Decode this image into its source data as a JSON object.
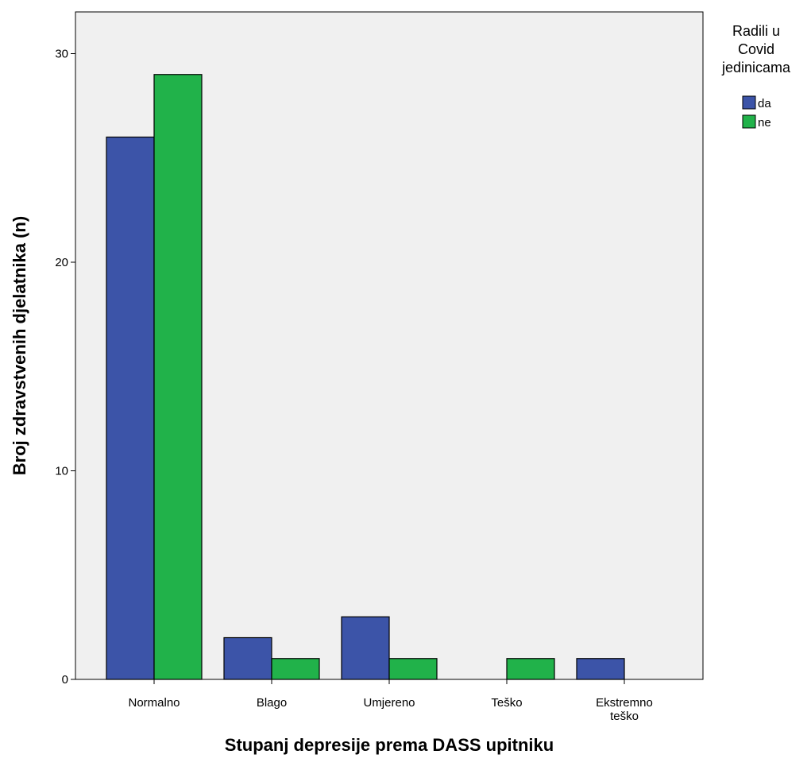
{
  "chart_data": {
    "type": "bar",
    "title": "",
    "xlabel": "Stupanj depresije prema DASS upitniku",
    "ylabel": "Broj zdravstvenih djelatnika (n)",
    "categories": [
      [
        "Normalno"
      ],
      [
        "Blago"
      ],
      [
        "Umjereno"
      ],
      [
        "Teško"
      ],
      [
        "Ekstremno",
        "teško"
      ]
    ],
    "series": [
      {
        "name": "da",
        "color": "#3c54a8",
        "values": [
          26,
          2,
          3,
          0,
          1
        ]
      },
      {
        "name": "ne",
        "color": "#21b24a",
        "values": [
          29,
          1,
          1,
          1,
          0
        ]
      }
    ],
    "ylim": [
      0,
      32
    ],
    "yticks": [
      0,
      10,
      20,
      30
    ],
    "grid": false,
    "plot_background": "#f0f0f0",
    "legend": {
      "title": [
        "Radili u",
        "Covid",
        "jedinicama"
      ],
      "placement": "right"
    }
  }
}
